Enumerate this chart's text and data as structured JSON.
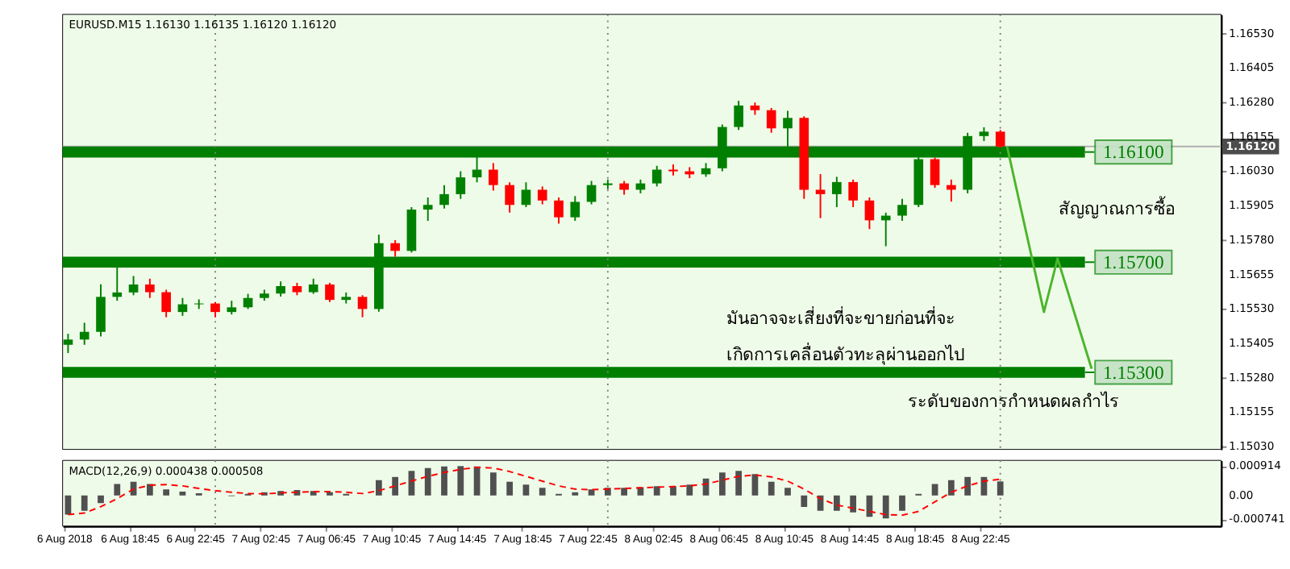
{
  "chart_data": [
    {
      "type": "candlestick",
      "title": "EURUSD.M15  1.16130 1.16135 1.16120 1.16120",
      "x": [
        "2018-08-06T15:00",
        "2018-08-06T16:00",
        "2018-08-06T17:00",
        "2018-08-06T18:00",
        "2018-08-06T19:00",
        "2018-08-06T20:00",
        "2018-08-06T21:00",
        "2018-08-06T22:00",
        "2018-08-06T23:00",
        "2018-08-07T00:00",
        "2018-08-07T01:00",
        "2018-08-07T02:00",
        "2018-08-07T03:00",
        "2018-08-07T04:00",
        "2018-08-07T05:00",
        "2018-08-07T06:00",
        "2018-08-07T07:00",
        "2018-08-07T08:00",
        "2018-08-07T09:00",
        "2018-08-07T10:00",
        "2018-08-07T11:00",
        "2018-08-07T12:00",
        "2018-08-07T13:00",
        "2018-08-07T14:00",
        "2018-08-07T15:00",
        "2018-08-07T16:00",
        "2018-08-07T17:00",
        "2018-08-07T18:00",
        "2018-08-07T19:00",
        "2018-08-07T20:00",
        "2018-08-07T21:00",
        "2018-08-07T22:00",
        "2018-08-07T23:00",
        "2018-08-08T00:00",
        "2018-08-08T01:00",
        "2018-08-08T02:00",
        "2018-08-08T03:00",
        "2018-08-08T04:00",
        "2018-08-08T05:00",
        "2018-08-08T06:00",
        "2018-08-08T07:00",
        "2018-08-08T08:00",
        "2018-08-08T09:00",
        "2018-08-08T10:00",
        "2018-08-08T11:00",
        "2018-08-08T12:00",
        "2018-08-08T13:00",
        "2018-08-08T14:00",
        "2018-08-08T15:00",
        "2018-08-08T16:00",
        "2018-08-08T17:00",
        "2018-08-08T18:00",
        "2018-08-08T19:00",
        "2018-08-08T20:00",
        "2018-08-08T21:00",
        "2018-08-08T22:00",
        "2018-08-08T23:00",
        "2018-08-09T00:00"
      ],
      "ohlc": [
        [
          1.154,
          1.1544,
          1.1537,
          1.15419
        ],
        [
          1.15419,
          1.1548,
          1.154,
          1.15447
        ],
        [
          1.15447,
          1.1562,
          1.1543,
          1.15574
        ],
        [
          1.15574,
          1.15713,
          1.1556,
          1.1559
        ],
        [
          1.1559,
          1.1565,
          1.1558,
          1.15619
        ],
        [
          1.15619,
          1.1564,
          1.1557,
          1.15591
        ],
        [
          1.15591,
          1.156,
          1.155,
          1.15519
        ],
        [
          1.15519,
          1.1557,
          1.15505,
          1.15547
        ],
        [
          1.15547,
          1.15565,
          1.1553,
          1.1555
        ],
        [
          1.1555,
          1.15555,
          1.155,
          1.15519
        ],
        [
          1.15519,
          1.1556,
          1.1551,
          1.15536
        ],
        [
          1.15536,
          1.15585,
          1.1553,
          1.1557
        ],
        [
          1.1557,
          1.156,
          1.1556,
          1.15586
        ],
        [
          1.15586,
          1.1563,
          1.15575,
          1.15613
        ],
        [
          1.15613,
          1.15625,
          1.1558,
          1.15591
        ],
        [
          1.15591,
          1.1564,
          1.15585,
          1.15619
        ],
        [
          1.15619,
          1.15625,
          1.15555,
          1.15563
        ],
        [
          1.15563,
          1.1559,
          1.1555,
          1.15574
        ],
        [
          1.15574,
          1.1558,
          1.155,
          1.1553
        ],
        [
          1.1553,
          1.158,
          1.1552,
          1.15769
        ],
        [
          1.15769,
          1.1578,
          1.1572,
          1.15741
        ],
        [
          1.15741,
          1.159,
          1.15735,
          1.15891
        ],
        [
          1.15891,
          1.15935,
          1.1585,
          1.15908
        ],
        [
          1.15908,
          1.1598,
          1.15895,
          1.15947
        ],
        [
          1.15947,
          1.1603,
          1.1593,
          1.16008
        ],
        [
          1.16008,
          1.16086,
          1.1599,
          1.16036
        ],
        [
          1.16036,
          1.1606,
          1.1596,
          1.1598
        ],
        [
          1.1598,
          1.1599,
          1.1588,
          1.15908
        ],
        [
          1.15908,
          1.1599,
          1.159,
          1.15963
        ],
        [
          1.15963,
          1.15975,
          1.1591,
          1.15924
        ],
        [
          1.15924,
          1.15935,
          1.1584,
          1.15863
        ],
        [
          1.15863,
          1.1594,
          1.1585,
          1.15919
        ],
        [
          1.15919,
          1.15995,
          1.1591,
          1.1598
        ],
        [
          1.1598,
          1.16,
          1.15965,
          1.15986
        ],
        [
          1.15986,
          1.15995,
          1.15945,
          1.15963
        ],
        [
          1.15963,
          1.16,
          1.1595,
          1.15986
        ],
        [
          1.15986,
          1.1605,
          1.15975,
          1.16036
        ],
        [
          1.16036,
          1.16055,
          1.16015,
          1.1603
        ],
        [
          1.1603,
          1.16045,
          1.16005,
          1.16019
        ],
        [
          1.16019,
          1.1606,
          1.1601,
          1.16041
        ],
        [
          1.16041,
          1.162,
          1.1603,
          1.16191
        ],
        [
          1.16191,
          1.16286,
          1.1618,
          1.16269
        ],
        [
          1.16269,
          1.1628,
          1.16235,
          1.16252
        ],
        [
          1.16252,
          1.1626,
          1.1617,
          1.16186
        ],
        [
          1.16186,
          1.1625,
          1.1611,
          1.16224
        ],
        [
          1.16224,
          1.1623,
          1.1593,
          1.15963
        ],
        [
          1.15963,
          1.1602,
          1.1586,
          1.15947
        ],
        [
          1.15947,
          1.1601,
          1.159,
          1.15991
        ],
        [
          1.15991,
          1.16,
          1.159,
          1.15924
        ],
        [
          1.15924,
          1.15935,
          1.1582,
          1.15852
        ],
        [
          1.15852,
          1.1588,
          1.15758,
          1.15869
        ],
        [
          1.15869,
          1.1593,
          1.1585,
          1.15908
        ],
        [
          1.15908,
          1.1609,
          1.159,
          1.16074
        ],
        [
          1.16074,
          1.1608,
          1.1597,
          1.1598
        ],
        [
          1.1598,
          1.16,
          1.1592,
          1.15963
        ],
        [
          1.15963,
          1.1617,
          1.1595,
          1.16158
        ],
        [
          1.16158,
          1.1619,
          1.1614,
          1.16174
        ],
        [
          1.16174,
          1.1618,
          1.16115,
          1.1612
        ]
      ],
      "colors": [
        "#008000",
        "#008000",
        "#008000",
        "#008000",
        "#008000",
        "#ff0000",
        "#ff0000",
        "#008000",
        "#008000",
        "#ff0000",
        "#008000",
        "#008000",
        "#008000",
        "#008000",
        "#ff0000",
        "#008000",
        "#ff0000",
        "#008000",
        "#ff0000",
        "#008000",
        "#ff0000",
        "#008000",
        "#008000",
        "#008000",
        "#008000",
        "#008000",
        "#ff0000",
        "#ff0000",
        "#008000",
        "#ff0000",
        "#ff0000",
        "#008000",
        "#008000",
        "#008000",
        "#ff0000",
        "#008000",
        "#008000",
        "#ff0000",
        "#ff0000",
        "#008000",
        "#008000",
        "#008000",
        "#ff0000",
        "#ff0000",
        "#008000",
        "#ff0000",
        "#ff0000",
        "#008000",
        "#ff0000",
        "#ff0000",
        "#008000",
        "#008000",
        "#008000",
        "#ff0000",
        "#ff0000",
        "#008000",
        "#008000",
        "#ff0000"
      ],
      "series": [
        {
          "type": "line",
          "color": "#4cb52c",
          "x": [
            "2018-08-09T00:25",
            "2018-08-09T02:40",
            "2018-08-09T03:30",
            "2018-08-09T05:35"
          ],
          "values": [
            1.16119,
            1.15519,
            1.15713,
            1.15313
          ]
        }
      ],
      "xlim": [
        "2018-08-06T14:40",
        "2018-08-09T13:30"
      ],
      "ylim": [
        1.1502,
        1.166
      ],
      "yticks": [
        {
          "value": 1.1653,
          "label": "1.16530"
        },
        {
          "value": 1.16405,
          "label": "1.16405"
        },
        {
          "value": 1.1628,
          "label": "1.16280"
        },
        {
          "value": 1.16155,
          "label": "1.16155"
        },
        {
          "value": 1.1603,
          "label": "1.16030"
        },
        {
          "value": 1.15905,
          "label": "1.15905"
        },
        {
          "value": 1.1578,
          "label": "1.15780"
        },
        {
          "value": 1.15655,
          "label": "1.15655"
        },
        {
          "value": 1.1553,
          "label": "1.15530"
        },
        {
          "value": 1.15405,
          "label": "1.15405"
        },
        {
          "value": 1.1528,
          "label": "1.15280"
        },
        {
          "value": 1.15155,
          "label": "1.15155"
        },
        {
          "value": 1.1503,
          "label": "1.15030"
        }
      ],
      "tick_labels": "y",
      "ref_lines": [
        {
          "axis": "y",
          "value": 1.1612,
          "label": "1.16120",
          "color": "#b0b0b0"
        },
        {
          "axis": "y",
          "value": 1.161,
          "label": "1.16100",
          "color": "#007f00"
        },
        {
          "axis": "y",
          "value": 1.157,
          "label": "1.15700",
          "color": "#007f00"
        },
        {
          "axis": "y",
          "value": 1.153,
          "label": "1.15300",
          "color": "#007f00"
        },
        {
          "axis": "x",
          "value": "2018-08-07T00:00",
          "color": "#808080",
          "line_style": "dotted"
        },
        {
          "axis": "x",
          "value": "2018-08-08T00:00",
          "color": "#808080",
          "line_style": "dotted"
        },
        {
          "axis": "x",
          "value": "2018-08-09T00:00",
          "color": "#808080",
          "line_style": "dotted"
        }
      ],
      "annotations": [
        "สัญญาณการซื้อ",
        "มันอาจจะเสี่ยงที่จะขายก่อนที่จะ",
        "เกิดการเคลื่อนตัวทะลุผ่านออกไป",
        "ระดับของการกำหนดผลกำไร"
      ]
    },
    {
      "type": "bar",
      "title": "MACD(12,26,9) 0.000438 0.000508",
      "x": [
        "2018-08-06T15:00",
        "2018-08-06T16:00",
        "2018-08-06T17:00",
        "2018-08-06T18:00",
        "2018-08-06T19:00",
        "2018-08-06T20:00",
        "2018-08-06T21:00",
        "2018-08-06T22:00",
        "2018-08-06T23:00",
        "2018-08-07T00:00",
        "2018-08-07T01:00",
        "2018-08-07T02:00",
        "2018-08-07T03:00",
        "2018-08-07T04:00",
        "2018-08-07T05:00",
        "2018-08-07T06:00",
        "2018-08-07T07:00",
        "2018-08-07T08:00",
        "2018-08-07T09:00",
        "2018-08-07T10:00",
        "2018-08-07T11:00",
        "2018-08-07T12:00",
        "2018-08-07T13:00",
        "2018-08-07T14:00",
        "2018-08-07T15:00",
        "2018-08-07T16:00",
        "2018-08-07T17:00",
        "2018-08-07T18:00",
        "2018-08-07T19:00",
        "2018-08-07T20:00",
        "2018-08-07T21:00",
        "2018-08-07T22:00",
        "2018-08-07T23:00",
        "2018-08-08T00:00",
        "2018-08-08T01:00",
        "2018-08-08T02:00",
        "2018-08-08T03:00",
        "2018-08-08T04:00",
        "2018-08-08T05:00",
        "2018-08-08T06:00",
        "2018-08-08T07:00",
        "2018-08-08T08:00",
        "2018-08-08T09:00",
        "2018-08-08T10:00",
        "2018-08-08T11:00",
        "2018-08-08T12:00",
        "2018-08-08T13:00",
        "2018-08-08T14:00",
        "2018-08-08T15:00",
        "2018-08-08T16:00",
        "2018-08-08T17:00",
        "2018-08-08T18:00",
        "2018-08-08T19:00",
        "2018-08-08T20:00",
        "2018-08-08T21:00",
        "2018-08-08T22:00",
        "2018-08-08T23:00",
        "2018-08-09T00:00"
      ],
      "series": [
        {
          "type": "bar",
          "color": "#505050",
          "values": [
            -0.0006,
            -0.00048,
            -0.00024,
            0.00036,
            0.00043,
            0.00036,
            0.00019,
            0.00012,
            7e-05,
            0.0,
            -2e-05,
            5e-05,
            0.0001,
            0.00014,
            0.00017,
            0.00014,
            0.0001,
            5e-05,
            0.0,
            0.00048,
            0.00058,
            0.00077,
            0.00086,
            0.00091,
            0.00092,
            0.00091,
            0.00072,
            0.00043,
            0.00034,
            0.00024,
            5e-05,
            0.0001,
            0.00019,
            0.00024,
            0.00024,
            0.00026,
            0.00029,
            0.00029,
            0.00034,
            0.00053,
            0.00072,
            0.00077,
            0.00067,
            0.00043,
            0.00024,
            -0.00036,
            -0.00048,
            -0.00048,
            -0.00053,
            -0.00067,
            -0.00072,
            -0.00048,
            5e-05,
            0.00036,
            0.00048,
            0.00058,
            0.00058,
            0.00044
          ]
        },
        {
          "type": "line",
          "color": "#ff0000",
          "line_style": "dashed",
          "values": [
            -0.0006,
            -0.00055,
            -0.00035,
            -0.0001,
            0.0002,
            0.00032,
            0.00034,
            0.0003,
            0.00022,
            0.00015,
            0.0001,
            6e-05,
            5e-05,
            8e-05,
            0.0001,
            0.00012,
            0.00012,
            0.0001,
            6e-05,
            0.00015,
            0.0003,
            0.00045,
            0.0006,
            0.00072,
            0.00082,
            0.00088,
            0.00086,
            0.00075,
            0.0006,
            0.00045,
            0.0003,
            0.0002,
            0.00018,
            0.0002,
            0.00022,
            0.00024,
            0.00026,
            0.00028,
            0.0003,
            0.00036,
            0.00048,
            0.0006,
            0.00064,
            0.00058,
            0.00045,
            0.0002,
            -0.0001,
            -0.0003,
            -0.0004,
            -0.0005,
            -0.0006,
            -0.00062,
            -0.0005,
            -0.0002,
            0.0001,
            0.0003,
            0.00045,
            0.00051
          ]
        }
      ],
      "xlim": [
        "2018-08-06T14:40",
        "2018-08-09T13:30"
      ],
      "xticks": [
        {
          "value": "2018-08-06T14:45",
          "label": "6 Aug 2018"
        },
        {
          "value": "2018-08-06T18:45",
          "label": "6 Aug 18:45"
        },
        {
          "value": "2018-08-06T22:45",
          "label": "6 Aug 22:45"
        },
        {
          "value": "2018-08-07T02:45",
          "label": "7 Aug 02:45"
        },
        {
          "value": "2018-08-07T06:45",
          "label": "7 Aug 06:45"
        },
        {
          "value": "2018-08-07T10:45",
          "label": "7 Aug 10:45"
        },
        {
          "value": "2018-08-07T14:45",
          "label": "7 Aug 14:45"
        },
        {
          "value": "2018-08-07T18:45",
          "label": "7 Aug 18:45"
        },
        {
          "value": "2018-08-07T22:45",
          "label": "7 Aug 22:45"
        },
        {
          "value": "2018-08-08T02:45",
          "label": "8 Aug 02:45"
        },
        {
          "value": "2018-08-08T06:45",
          "label": "8 Aug 06:45"
        },
        {
          "value": "2018-08-08T10:45",
          "label": "8 Aug 10:45"
        },
        {
          "value": "2018-08-08T14:45",
          "label": "8 Aug 14:45"
        },
        {
          "value": "2018-08-08T18:45",
          "label": "8 Aug 18:45"
        },
        {
          "value": "2018-08-08T22:45",
          "label": "8 Aug 22:45"
        }
      ],
      "ylim": [
        -0.00096,
        0.0011
      ],
      "yticks": [
        0.000914,
        {
          "value": 0,
          "label": "0.00"
        },
        -0.000741
      ],
      "ref_lines": [
        {
          "axis": "x",
          "value": "2018-08-07T00:00",
          "color": "#808080",
          "line_style": "dotted"
        },
        {
          "axis": "x",
          "value": "2018-08-08T00:00",
          "color": "#808080",
          "line_style": "dotted"
        },
        {
          "axis": "x",
          "value": "2018-08-09T00:00",
          "color": "#808080",
          "line_style": "dotted"
        }
      ]
    }
  ]
}
